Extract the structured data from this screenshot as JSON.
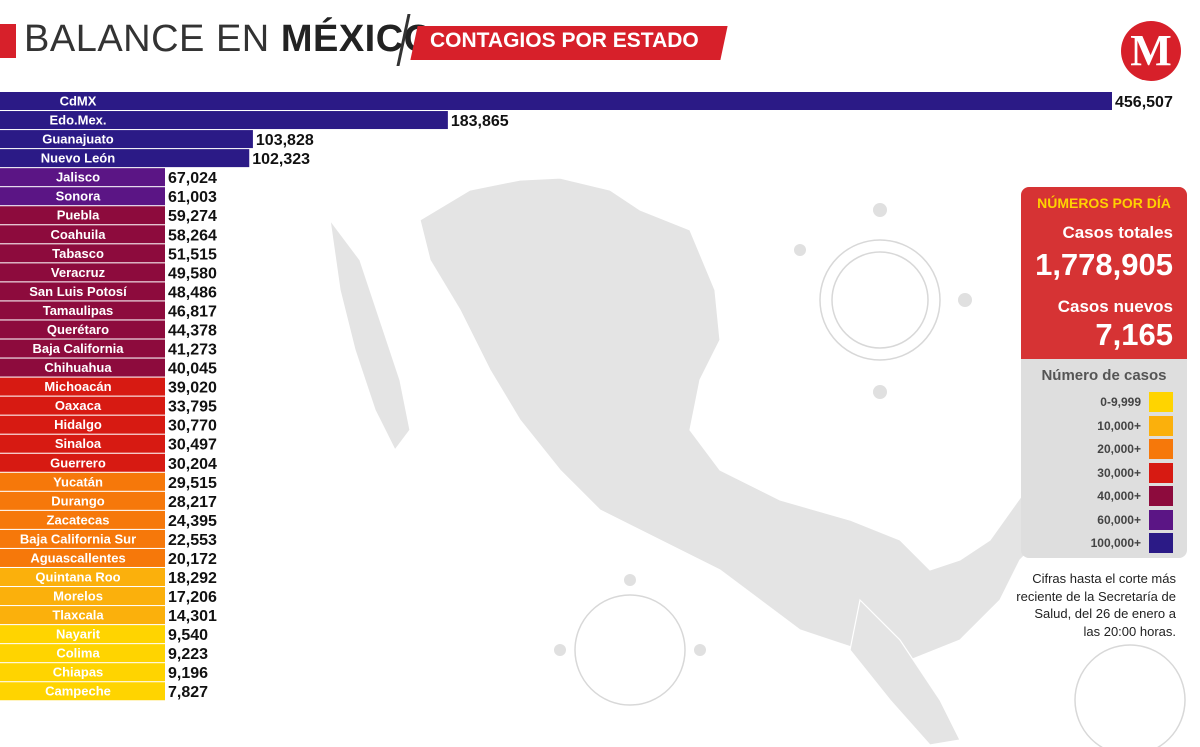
{
  "header": {
    "title_light": "BALANCE EN ",
    "title_bold": "MÉXICO",
    "subtitle": "CONTAGIOS POR ESTADO",
    "logo_letter": "M"
  },
  "colors": {
    "title_red": "#d7202a",
    "100000+": "#2b1a86",
    "60000+": "#5b1585",
    "40000+": "#8d0b3d",
    "30000+": "#d71a12",
    "20000+": "#f6780a",
    "10000+": "#fbb00c",
    "0-9999": "#ffd400"
  },
  "panel": {
    "heading": "NÚMEROS POR DÍA",
    "total_label": "Casos totales",
    "total_value": "1,778,905",
    "new_label": "Casos nuevos",
    "new_value": "7,165"
  },
  "legend": {
    "title": "Número de casos",
    "items": [
      {
        "label": "0-9,999",
        "color": "#ffd400"
      },
      {
        "label": "10,000+",
        "color": "#fbb00c"
      },
      {
        "label": "20,000+",
        "color": "#f6780a"
      },
      {
        "label": "30,000+",
        "color": "#d71a12"
      },
      {
        "label": "40,000+",
        "color": "#8d0b3d"
      },
      {
        "label": "60,000+",
        "color": "#5b1585"
      },
      {
        "label": "100,000+",
        "color": "#2b1a86"
      }
    ]
  },
  "note": "Cifras hasta el corte más reciente de la Secretaría de Salud, del 26 de enero a las 20:00 horas.",
  "chart_data": {
    "type": "bar",
    "title": "CONTAGIOS POR ESTADO",
    "orientation": "horizontal",
    "categories": [
      "CdMX",
      "Edo.Mex.",
      "Guanajuato",
      "Nuevo León",
      "Jalisco",
      "Sonora",
      "Puebla",
      "Coahuila",
      "Tabasco",
      "Veracruz",
      "San Luis Potosí",
      "Tamaulipas",
      "Querétaro",
      "Baja California",
      "Chihuahua",
      "Michoacán",
      "Oaxaca",
      "Hidalgo",
      "Sinaloa",
      "Guerrero",
      "Yucatán",
      "Durango",
      "Zacatecas",
      "Baja California Sur",
      "Aguascallentes",
      "Quintana Roo",
      "Morelos",
      "Tlaxcala",
      "Nayarit",
      "Colima",
      "Chiapas",
      "Campeche"
    ],
    "values": [
      456507,
      183865,
      103828,
      102323,
      67024,
      61003,
      59274,
      58264,
      51515,
      49580,
      48486,
      46817,
      44378,
      41273,
      40045,
      39020,
      33795,
      30770,
      30497,
      30204,
      29515,
      28217,
      24395,
      22553,
      20172,
      18292,
      17206,
      14301,
      9540,
      9223,
      9196,
      7827
    ],
    "value_labels": [
      "456,507",
      "183,865",
      "103,828",
      "102,323",
      "67,024",
      "61,003",
      "59,274",
      "58,264",
      "51,515",
      "49,580",
      "48,486",
      "46,817",
      "44,378",
      "41,273",
      "40,045",
      "39,020",
      "33,795",
      "30,770",
      "30,497",
      "30,204",
      "29,515",
      "28,217",
      "24,395",
      "22,553",
      "20,172",
      "18,292",
      "17,206",
      "14,301",
      "9,540",
      "9,223",
      "9,196",
      "7,827"
    ],
    "color_by_threshold": true,
    "legend_placement": "right"
  }
}
